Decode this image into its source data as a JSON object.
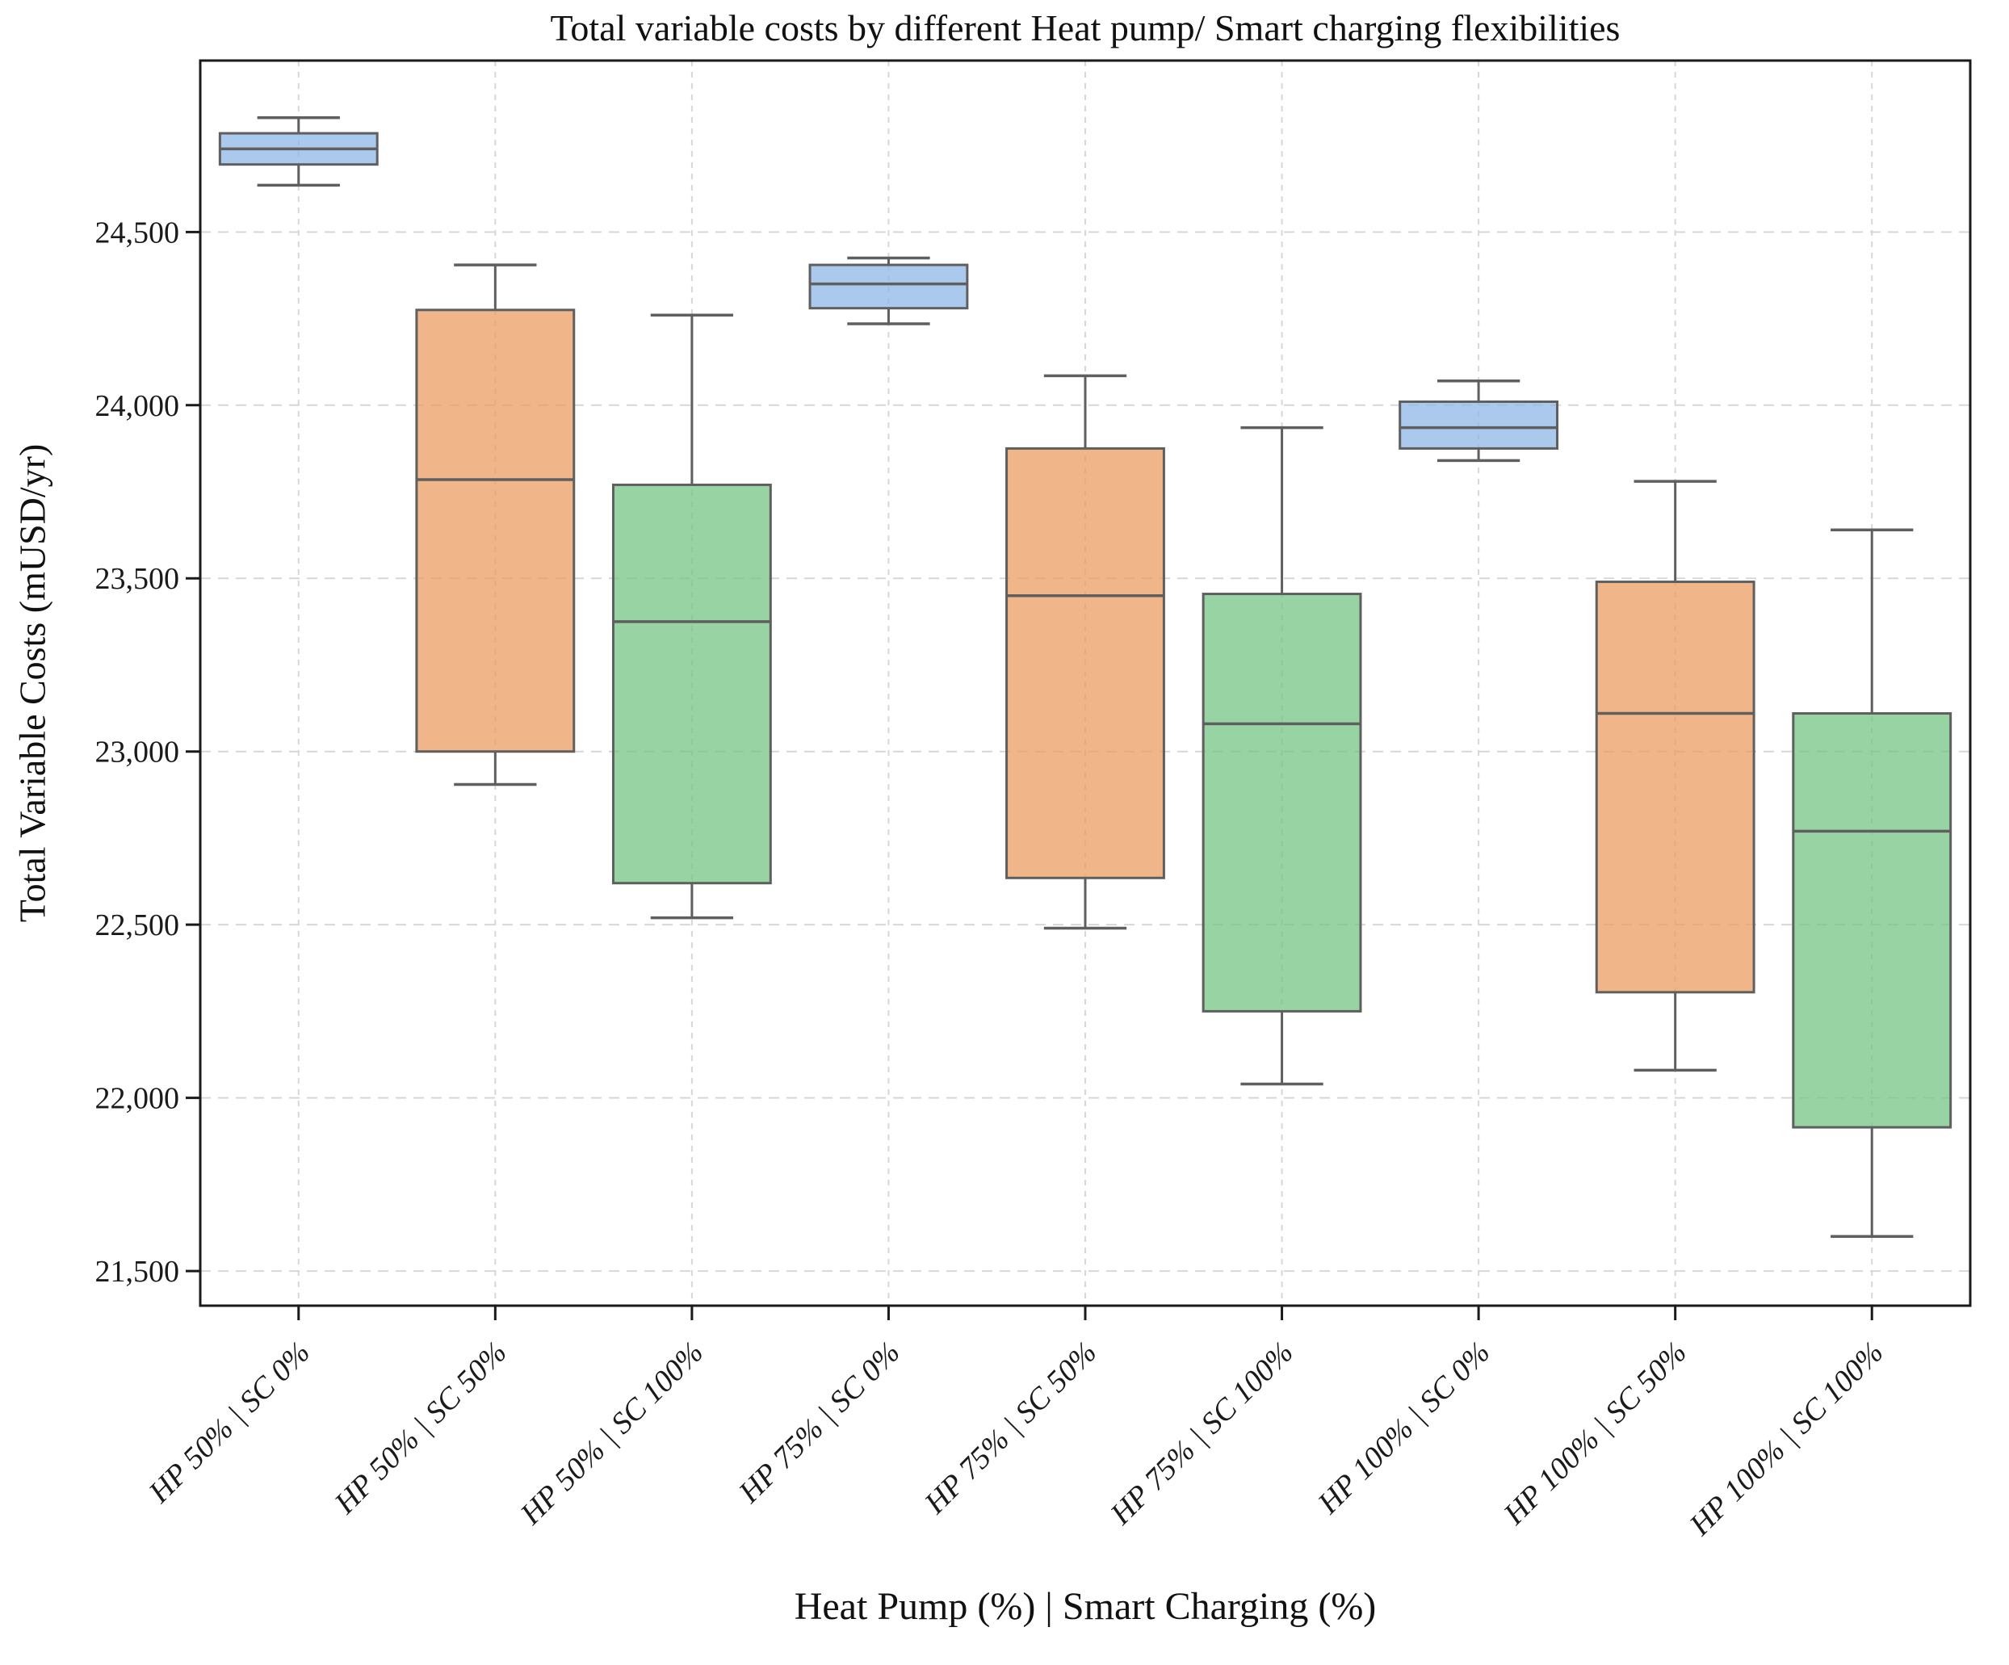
{
  "title": "Total variable costs by different Heat pump/ Smart charging flexibilities",
  "x_axis": {
    "label": "Heat Pump (%) | Smart Charging (%)"
  },
  "y_axis": {
    "label": "Total Variable Costs (mUSD/yr)"
  },
  "chart_data": {
    "type": "box",
    "title": "Total variable costs by different Heat pump/ Smart charging flexibilities",
    "xlabel": "Heat Pump (%) | Smart Charging (%)",
    "ylabel": "Total Variable Costs (mUSD/yr)",
    "ylim": [
      21400,
      24995
    ],
    "grid": true,
    "legend_position": "none",
    "y_ticks": [
      {
        "value": 21500,
        "label": "21,500"
      },
      {
        "value": 22000,
        "label": "22,000"
      },
      {
        "value": 22500,
        "label": "22,500"
      },
      {
        "value": 23000,
        "label": "23,000"
      },
      {
        "value": 23500,
        "label": "23,500"
      },
      {
        "value": 24000,
        "label": "24,000"
      },
      {
        "value": 24500,
        "label": "24,500"
      }
    ],
    "categories": [
      "HP 50% | SC 0%",
      "HP 50% | SC 50%",
      "HP 50% | SC 100%",
      "HP 75% | SC 0%",
      "HP 75% | SC 50%",
      "HP 75% | SC 100%",
      "HP 100% | SC 0%",
      "HP 100% | SC 50%",
      "HP 100% | SC 100%"
    ],
    "series": [
      {
        "label": "HP 50% | SC 0%",
        "group": "SC 0%",
        "whisker_low": 24635,
        "q1": 24695,
        "median": 24740,
        "q3": 24785,
        "whisker_high": 24830
      },
      {
        "label": "HP 50% | SC 50%",
        "group": "SC 50%",
        "whisker_low": 22905,
        "q1": 23000,
        "median": 23785,
        "q3": 24275,
        "whisker_high": 24405
      },
      {
        "label": "HP 50% | SC 100%",
        "group": "SC 100%",
        "whisker_low": 22520,
        "q1": 22620,
        "median": 23375,
        "q3": 23770,
        "whisker_high": 24260
      },
      {
        "label": "HP 75% | SC 0%",
        "group": "SC 0%",
        "whisker_low": 24235,
        "q1": 24280,
        "median": 24350,
        "q3": 24405,
        "whisker_high": 24425
      },
      {
        "label": "HP 75% | SC 50%",
        "group": "SC 50%",
        "whisker_low": 22490,
        "q1": 22635,
        "median": 23450,
        "q3": 23875,
        "whisker_high": 24085
      },
      {
        "label": "HP 75% | SC 100%",
        "group": "SC 100%",
        "whisker_low": 22040,
        "q1": 22250,
        "median": 23080,
        "q3": 23455,
        "whisker_high": 23935
      },
      {
        "label": "HP 100% | SC 0%",
        "group": "SC 0%",
        "whisker_low": 23840,
        "q1": 23875,
        "median": 23935,
        "q3": 24010,
        "whisker_high": 24070
      },
      {
        "label": "HP 100% | SC 50%",
        "group": "SC 50%",
        "whisker_low": 22080,
        "q1": 22305,
        "median": 23110,
        "q3": 23490,
        "whisker_high": 23780
      },
      {
        "label": "HP 100% | SC 100%",
        "group": "SC 100%",
        "whisker_low": 21600,
        "q1": 21915,
        "median": 22770,
        "q3": 23110,
        "whisker_high": 23640
      }
    ],
    "colors": {
      "SC 0%": "#8fb7e5",
      "SC 50%": "#eb9d63",
      "SC 100%": "#75c484",
      "fill_opacity": 0.75,
      "edge": "#5f5f5f",
      "grid": "#d7d7d7",
      "frame": "#1a1a1a",
      "text": "#1a1a1a"
    }
  }
}
